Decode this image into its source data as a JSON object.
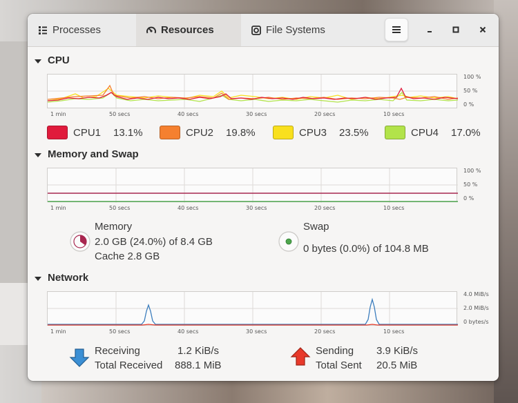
{
  "tabs": [
    {
      "label": "Processes",
      "icon": "list-icon",
      "active": false
    },
    {
      "label": "Resources",
      "icon": "gauge-icon",
      "active": true
    },
    {
      "label": "File Systems",
      "icon": "disk-icon",
      "active": false
    }
  ],
  "window_controls": {
    "menu": "hamburger-menu-icon",
    "minimize": "minimize-icon",
    "maximize": "maximize-icon",
    "close": "close-icon"
  },
  "cpu": {
    "title": "CPU",
    "y_ticks": [
      "100 %",
      "50 %",
      "0 %"
    ],
    "x_ticks": [
      "1 min",
      "50 secs",
      "40 secs",
      "30 secs",
      "20 secs",
      "10 secs"
    ],
    "cores": [
      {
        "name": "CPU1",
        "value": "13.1%",
        "color": "#e01b3c"
      },
      {
        "name": "CPU2",
        "value": "19.8%",
        "color": "#f5802f"
      },
      {
        "name": "CPU3",
        "value": "23.5%",
        "color": "#f9e01e"
      },
      {
        "name": "CPU4",
        "value": "17.0%",
        "color": "#b2e34a"
      }
    ]
  },
  "memory": {
    "title": "Memory and Swap",
    "y_ticks": [
      "100 %",
      "50 %",
      "0 %"
    ],
    "x_ticks": [
      "1 min",
      "50 secs",
      "40 secs",
      "30 secs",
      "20 secs",
      "10 secs"
    ],
    "mem_label": "Memory",
    "mem_usage": "2.0 GB (24.0%) of 8.4 GB",
    "mem_cache": "Cache 2.8 GB",
    "mem_fraction": 0.24,
    "mem_color": "#a8264f",
    "swap_label": "Swap",
    "swap_usage": "0 bytes (0.0%) of 104.8 MB",
    "swap_fraction": 0.0,
    "swap_color": "#4ea64e"
  },
  "network": {
    "title": "Network",
    "y_ticks": [
      "4.0 MiB/s",
      "2.0 MiB/s",
      "0 bytes/s"
    ],
    "x_ticks": [
      "1 min",
      "50 secs",
      "40 secs",
      "30 secs",
      "20 secs",
      "10 secs"
    ],
    "receiving_label": "Receiving",
    "receiving_value": "1.2 KiB/s",
    "total_received_label": "Total Received",
    "total_received_value": "888.1 MiB",
    "sending_label": "Sending",
    "sending_value": "3.9 KiB/s",
    "total_sent_label": "Total Sent",
    "total_sent_value": "20.5 MiB",
    "receiving_color": "#3b7dbd",
    "sending_color": "#e53a2a"
  }
}
